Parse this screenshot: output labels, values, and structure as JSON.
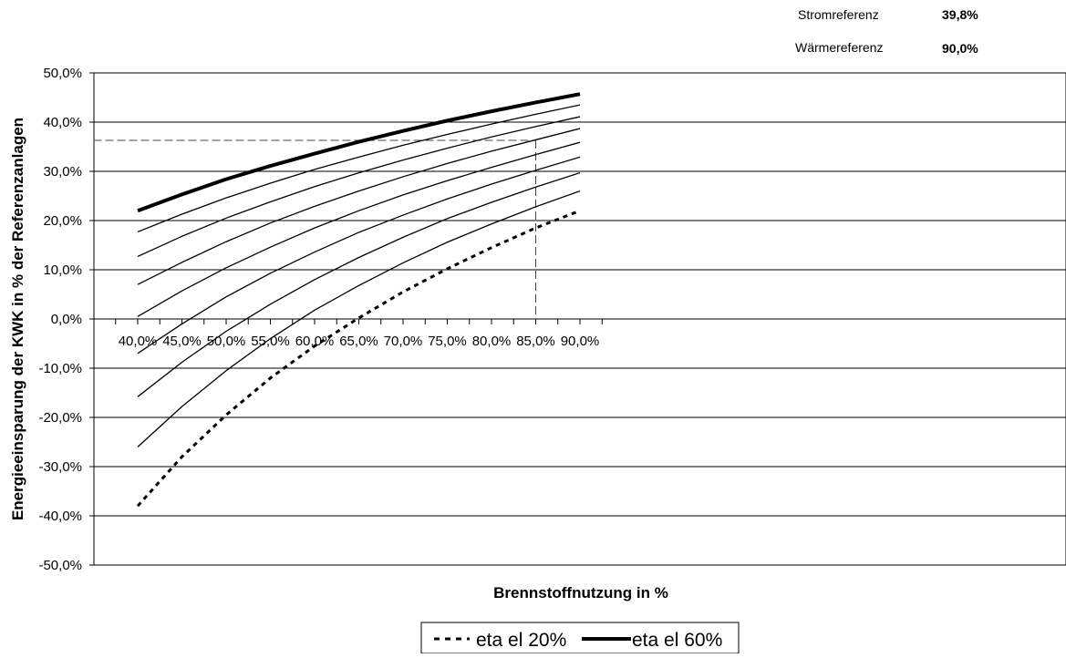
{
  "references": [
    {
      "label": "Stromreferenz",
      "value": "39,8%"
    },
    {
      "label": "Wärmereferenz",
      "value": "90,0%"
    }
  ],
  "chart_data": {
    "type": "line",
    "xlabel": "Brennstoffnutzung in %",
    "ylabel": "Energieeinsparung der KWK in % der Referenzanlagen",
    "x": [
      40,
      45,
      50,
      55,
      60,
      65,
      70,
      75,
      80,
      85,
      90
    ],
    "x_tick_labels": [
      "40,0%",
      "45,0%",
      "50,0%",
      "55,0%",
      "60,0%",
      "65,0%",
      "70,0%",
      "75,0%",
      "80,0%",
      "85,0%",
      "90,0%"
    ],
    "ylim": [
      -50,
      50
    ],
    "y_ticks": [
      50,
      40,
      30,
      20,
      10,
      0,
      -10,
      -20,
      -30,
      -40,
      -50
    ],
    "y_tick_labels": [
      "50,0%",
      "40,0%",
      "30,0%",
      "20,0%",
      "10,0%",
      "0,0%",
      "-10,0%",
      "-20,0%",
      "-30,0%",
      "-40,0%",
      "-50,0%"
    ],
    "grid": "horizontal",
    "legend_position": "bottom",
    "series": [
      {
        "name": "eta el 20%",
        "style": "dotted",
        "color": "#000000",
        "values": [
          -38,
          -28,
          -19.5,
          -12,
          -5.5,
          0.2,
          5.5,
          10.2,
          14.5,
          18.5,
          22
        ]
      },
      {
        "style": "thin",
        "color": "#000000",
        "values": [
          -26,
          -17.8,
          -10.5,
          -4,
          1.8,
          6.8,
          11.4,
          15.6,
          19.3,
          22.8,
          26
        ]
      },
      {
        "style": "thin",
        "color": "#000000",
        "values": [
          -15.8,
          -8.8,
          -2.5,
          3,
          8,
          12.5,
          16.6,
          20.4,
          23.7,
          26.8,
          29.7
        ]
      },
      {
        "style": "thin",
        "color": "#000000",
        "values": [
          -7,
          -1,
          4.5,
          9.3,
          13.6,
          17.6,
          21.1,
          24.4,
          27.4,
          30.2,
          32.9
        ]
      },
      {
        "style": "thin",
        "color": "#000000",
        "values": [
          0.5,
          5.7,
          10.4,
          14.6,
          18.5,
          22,
          25.2,
          28.1,
          30.8,
          33.4,
          35.9
        ]
      },
      {
        "style": "thin",
        "color": "#000000",
        "values": [
          7,
          11.5,
          15.7,
          19.5,
          22.9,
          26,
          28.9,
          31.6,
          34.1,
          36.4,
          38.7
        ]
      },
      {
        "style": "thin",
        "color": "#000000",
        "values": [
          12.7,
          16.8,
          20.5,
          23.8,
          26.9,
          29.7,
          32.3,
          34.7,
          37,
          39.1,
          41.1
        ]
      },
      {
        "style": "thin",
        "color": "#000000",
        "values": [
          17.7,
          21.3,
          24.6,
          27.6,
          30.4,
          32.9,
          35.3,
          37.5,
          39.6,
          41.6,
          43.5
        ]
      },
      {
        "name": "eta el 60%",
        "style": "thick",
        "color": "#000000",
        "values": [
          22,
          25.3,
          28.4,
          31.1,
          33.6,
          36,
          38.2,
          40.3,
          42.2,
          44,
          45.7
        ]
      }
    ],
    "annotation_lines": [
      {
        "style": "dashed",
        "points": [
          [
            35,
            36.3
          ],
          [
            85,
            36.3
          ]
        ]
      },
      {
        "style": "dashed",
        "points": [
          [
            85,
            36.3
          ],
          [
            85,
            0.5
          ]
        ]
      }
    ]
  }
}
